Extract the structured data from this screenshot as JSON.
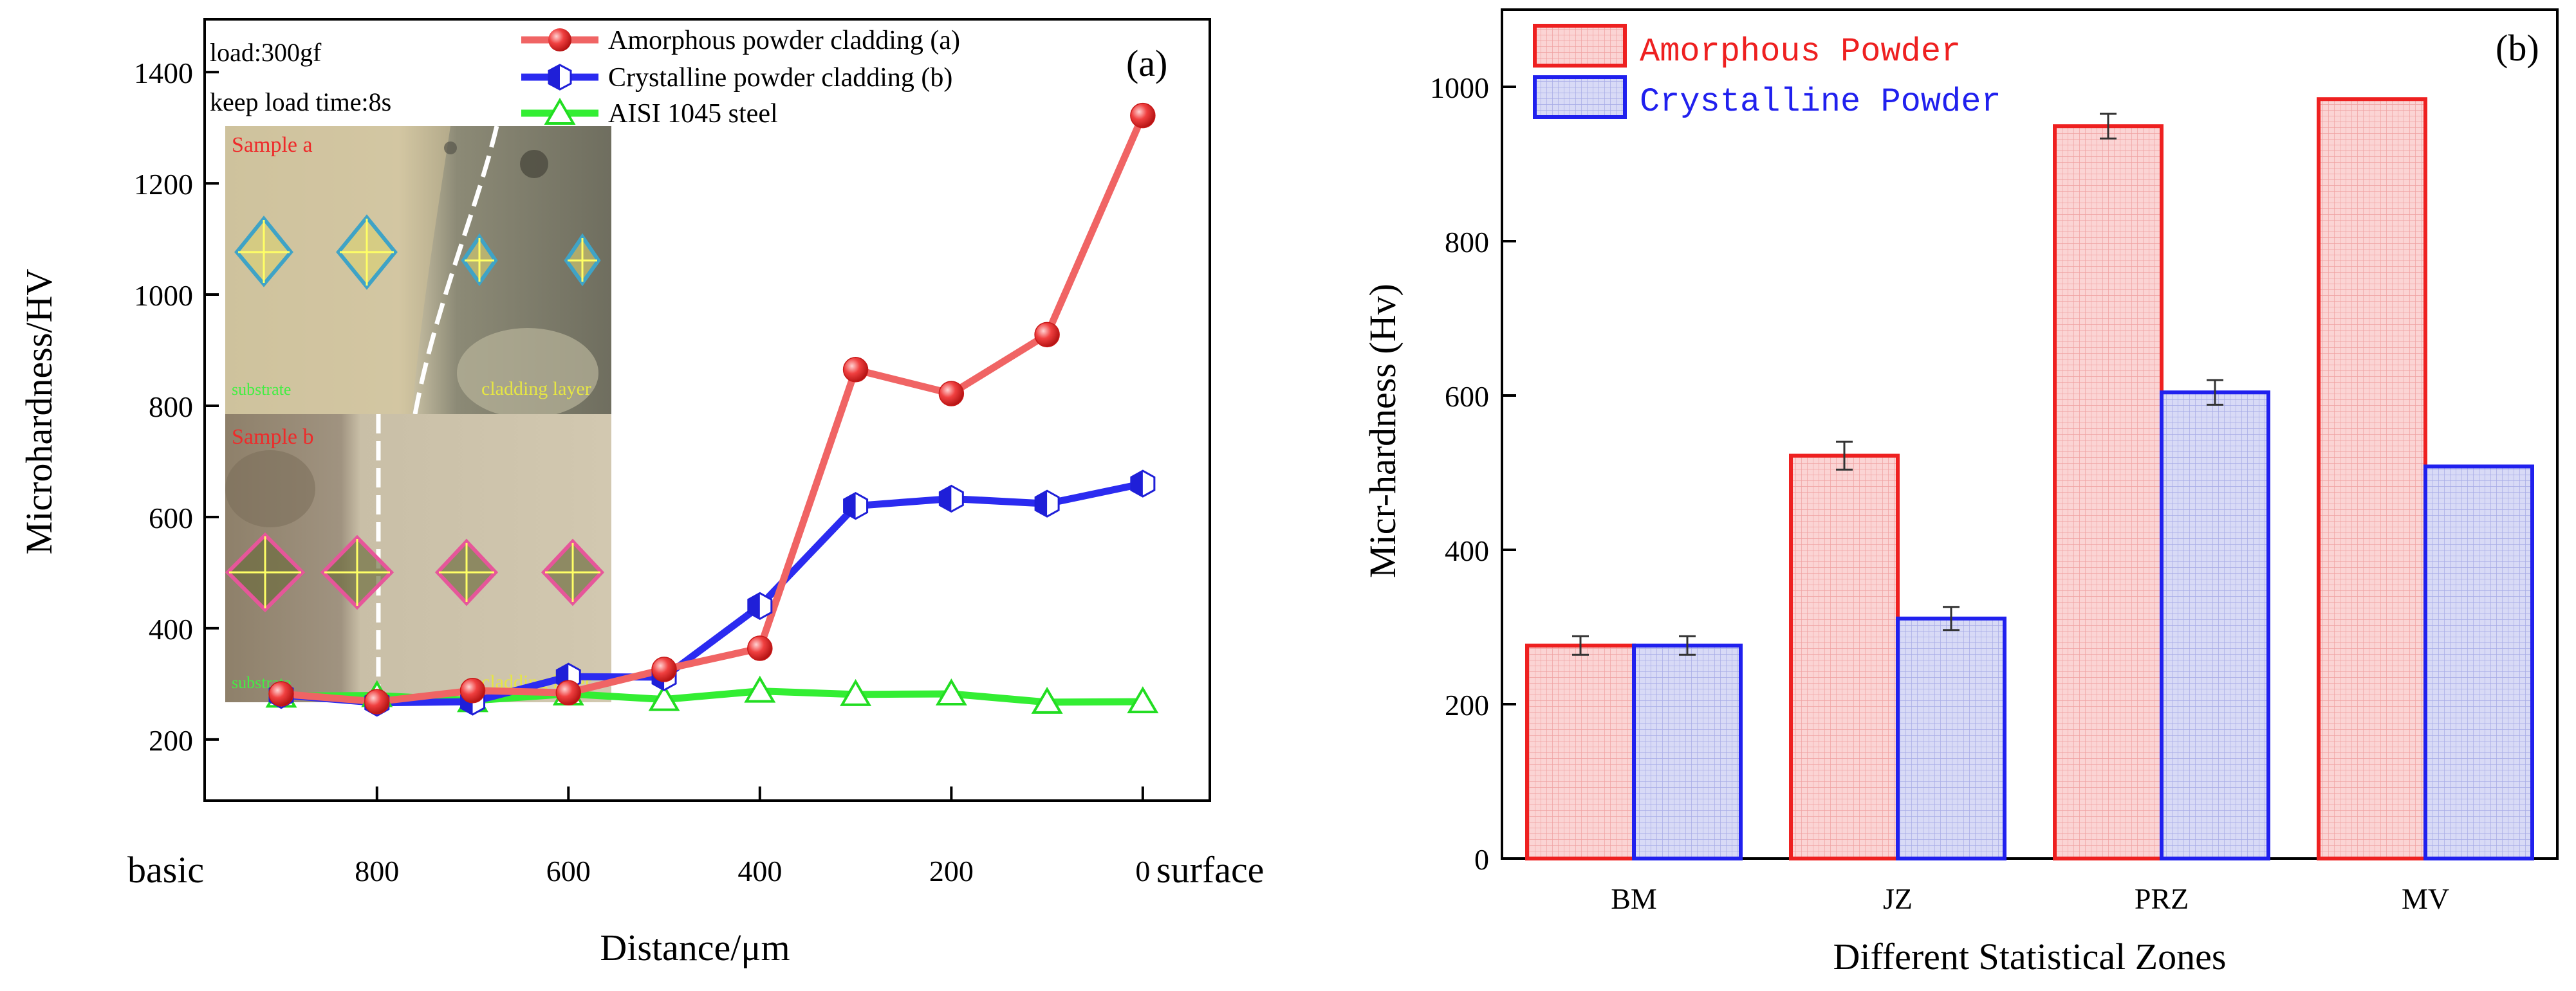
{
  "chart_data": [
    {
      "type": "line",
      "panel_label": "(a)",
      "xlabel": "Distance/μm",
      "ylabel": "Microhardness/HV",
      "x_left_label": "basic",
      "x_right_label": "surface",
      "xlim": [
        980,
        -70
      ],
      "ylim": [
        90,
        1495
      ],
      "x_ticks": [
        800,
        600,
        400,
        200,
        0
      ],
      "y_ticks": [
        200,
        400,
        600,
        800,
        1000,
        1200,
        1400
      ],
      "annotations": [
        "load:300gf",
        "keep load time:8s"
      ],
      "inset": {
        "top_image": {
          "title": "Sample a",
          "left_label": "substrate",
          "right_label": "cladding layer"
        },
        "bottom_image": {
          "title": "Sample b",
          "left_label": "substrate",
          "right_label": "cladding layer"
        }
      },
      "series": [
        {
          "name": "Amorphous powder cladding (a)",
          "color": "#f06464",
          "marker": "sphere",
          "marker_color": "#ee2a2a",
          "x": [
            900,
            800,
            700,
            600,
            500,
            400,
            300,
            200,
            100,
            0
          ],
          "values": [
            282,
            268,
            288,
            284,
            326,
            364,
            865,
            822,
            928,
            1322
          ]
        },
        {
          "name": "Crystalline powder cladding (b)",
          "color": "#2b2bf0",
          "marker": "half-hexagon",
          "marker_color": "#1f1fd8",
          "x": [
            900,
            800,
            700,
            600,
            500,
            400,
            300,
            200,
            100,
            0
          ],
          "values": [
            280,
            266,
            268,
            313,
            312,
            440,
            620,
            633,
            624,
            660
          ]
        },
        {
          "name": "AISI 1045 steel",
          "color": "#33ee33",
          "marker": "triangle",
          "marker_color": "#22dd22",
          "x": [
            900,
            800,
            700,
            600,
            500,
            400,
            300,
            200,
            100,
            0
          ],
          "values": [
            278,
            279,
            270,
            282,
            272,
            287,
            281,
            282,
            267,
            268
          ]
        }
      ]
    },
    {
      "type": "bar",
      "panel_label": "(b)",
      "xlabel": "Different Statistical Zones",
      "ylabel": "Micr-hardness (Hv)",
      "ylim": [
        0,
        1100
      ],
      "y_ticks": [
        0,
        200,
        400,
        600,
        800,
        1000
      ],
      "categories": [
        "BM",
        "JZ",
        "PRZ",
        "MV"
      ],
      "series": [
        {
          "name": "Amorphous Powder",
          "color": "#ee2020",
          "fill": "#fbd4d4",
          "values": [
            276,
            522,
            949,
            984
          ],
          "errors": [
            12,
            18,
            16,
            null
          ]
        },
        {
          "name": "Crystalline Powder",
          "color": "#2020ee",
          "fill": "#d4d6f4",
          "values": [
            276,
            311,
            604,
            508
          ],
          "errors": [
            12,
            15,
            16,
            null
          ]
        }
      ]
    }
  ]
}
